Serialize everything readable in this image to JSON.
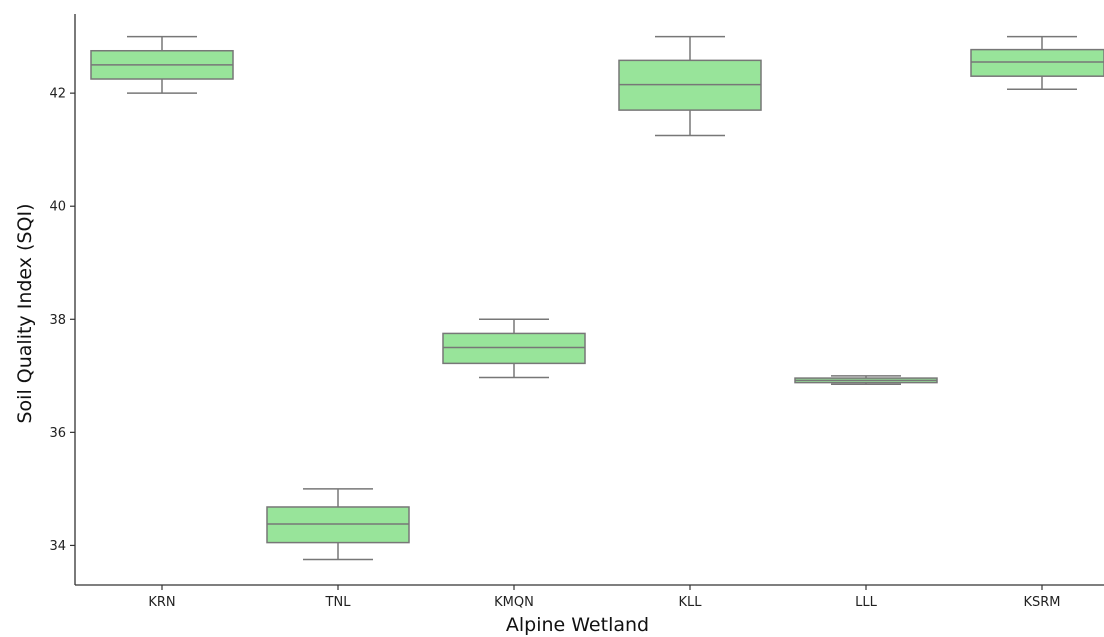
{
  "chart_data": {
    "type": "box",
    "title": "",
    "xlabel": "Alpine Wetland",
    "ylabel": "Soil Quality Index (SQI)",
    "ylim": [
      33.3,
      43.4
    ],
    "yticks": [
      34,
      36,
      38,
      40,
      42
    ],
    "grid": false,
    "categories": [
      "KRN",
      "TNL",
      "KMQN",
      "KLL",
      "LLL",
      "KSRM"
    ],
    "boxes": [
      {
        "min": 42.0,
        "q1": 42.25,
        "median": 42.5,
        "q3": 42.75,
        "max": 43.0
      },
      {
        "min": 33.75,
        "q1": 34.05,
        "median": 34.38,
        "q3": 34.68,
        "max": 35.0
      },
      {
        "min": 36.97,
        "q1": 37.22,
        "median": 37.5,
        "q3": 37.75,
        "max": 38.0
      },
      {
        "min": 41.25,
        "q1": 41.7,
        "median": 42.15,
        "q3": 42.58,
        "max": 43.0
      },
      {
        "min": 36.85,
        "q1": 36.88,
        "median": 36.92,
        "q3": 36.96,
        "max": 37.0
      },
      {
        "min": 42.07,
        "q1": 42.3,
        "median": 42.55,
        "q3": 42.77,
        "max": 43.0
      }
    ],
    "colors": {
      "box_fill": "#98e49a",
      "box_edge": "#777777",
      "axis": "#333333"
    }
  }
}
